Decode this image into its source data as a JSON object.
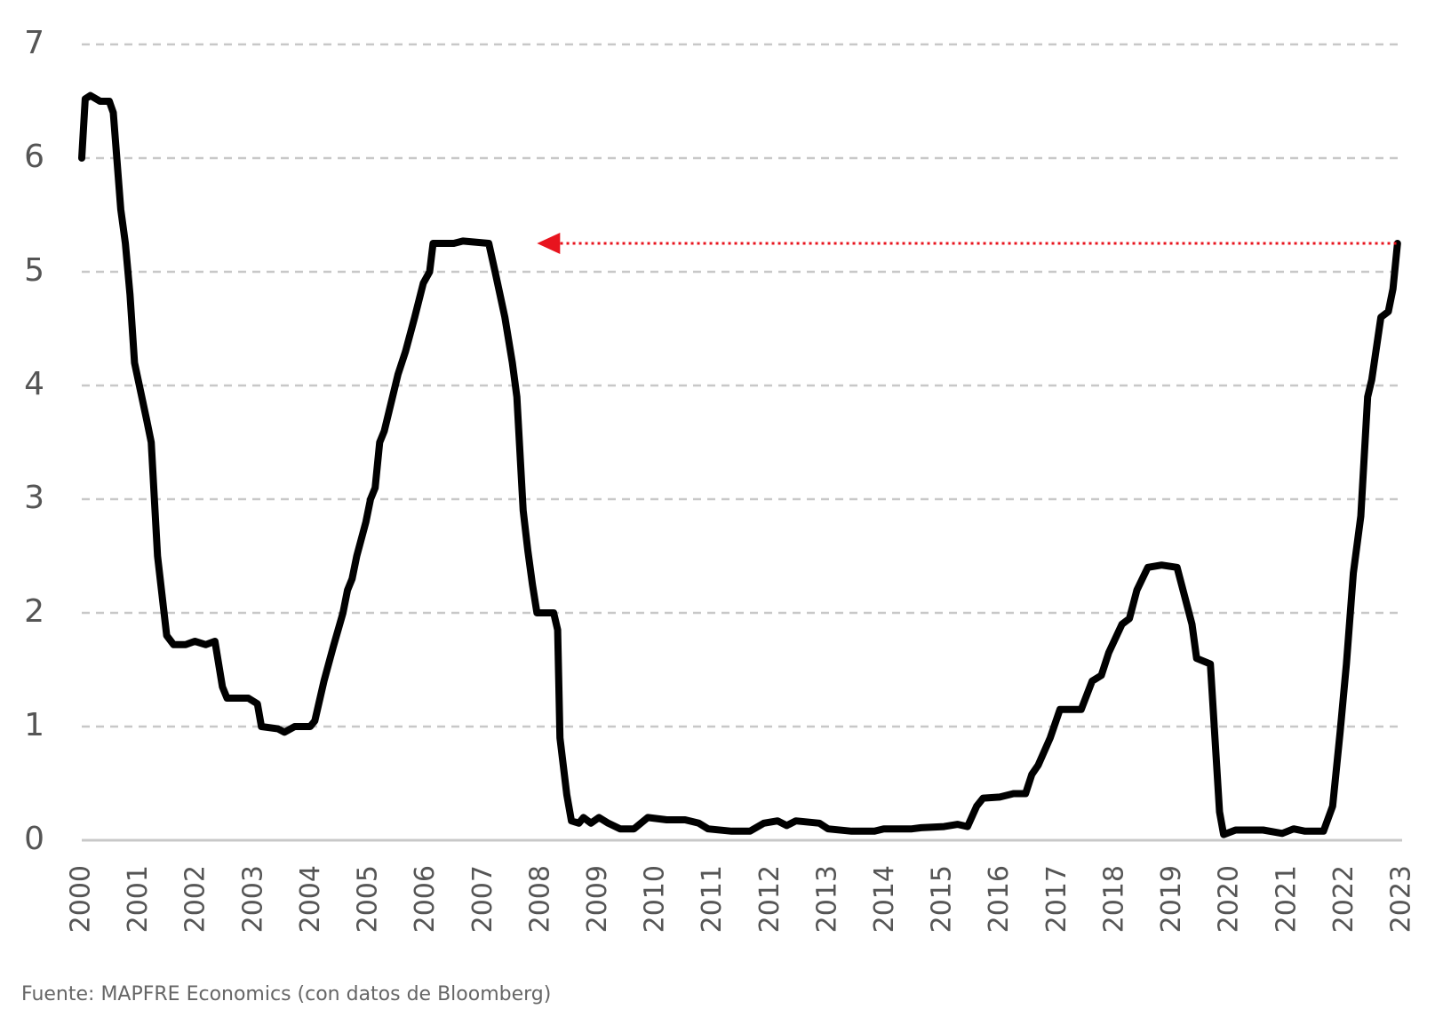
{
  "chart_data": {
    "type": "line",
    "color": "#000000",
    "x": [
      2000.0,
      2000.06,
      2000.15,
      2000.32,
      2000.48,
      2000.55,
      2000.68,
      2000.76,
      2000.84,
      2000.92,
      2001.13,
      2001.21,
      2001.32,
      2001.48,
      2001.6,
      2001.81,
      2001.97,
      2002.16,
      2002.32,
      2002.45,
      2002.53,
      2002.9,
      2003.06,
      2003.13,
      2003.42,
      2003.53,
      2003.71,
      2003.98,
      2004.06,
      2004.22,
      2004.38,
      2004.55,
      2004.63,
      2004.71,
      2004.79,
      2004.95,
      2005.03,
      2005.11,
      2005.19,
      2005.27,
      2005.51,
      2005.64,
      2005.8,
      2005.95,
      2006.06,
      2006.12,
      2006.48,
      2006.64,
      2007.09,
      2007.2,
      2007.37,
      2007.5,
      2007.58,
      2007.69,
      2007.77,
      2007.85,
      2007.93,
      2008.09,
      2008.22,
      2008.29,
      2008.33,
      2008.45,
      2008.53,
      2008.66,
      2008.74,
      2008.87,
      2009.01,
      2009.17,
      2009.38,
      2009.62,
      2009.86,
      2010.19,
      2010.51,
      2010.75,
      2010.91,
      2011.32,
      2011.64,
      2011.88,
      2012.12,
      2012.28,
      2012.44,
      2012.85,
      2013.0,
      2013.41,
      2013.81,
      2013.97,
      2014.46,
      2014.62,
      2015.02,
      2015.26,
      2015.43,
      2015.59,
      2015.7,
      2015.99,
      2016.23,
      2016.44,
      2016.55,
      2016.66,
      2016.87,
      2017.04,
      2017.41,
      2017.6,
      2017.76,
      2017.89,
      2018.12,
      2018.25,
      2018.38,
      2018.57,
      2018.81,
      2019.08,
      2019.21,
      2019.34,
      2019.42,
      2019.66,
      2019.82,
      2019.89,
      2020.1,
      2020.58,
      2020.91,
      2021.11,
      2021.31,
      2021.63,
      2021.79,
      2021.92,
      2022.03,
      2022.15,
      2022.28,
      2022.4,
      2022.47,
      2022.63,
      2022.76,
      2022.84,
      2022.92
    ],
    "values": [
      6.0,
      6.52,
      6.55,
      6.5,
      6.5,
      6.4,
      5.55,
      5.25,
      4.8,
      4.2,
      3.7,
      3.5,
      2.5,
      1.8,
      1.72,
      1.72,
      1.75,
      1.72,
      1.75,
      1.35,
      1.25,
      1.25,
      1.2,
      1.0,
      0.98,
      0.95,
      1.0,
      1.0,
      1.05,
      1.4,
      1.7,
      2.0,
      2.2,
      2.3,
      2.5,
      2.8,
      3.0,
      3.1,
      3.5,
      3.6,
      4.1,
      4.3,
      4.6,
      4.9,
      5.0,
      5.25,
      5.25,
      5.27,
      5.25,
      5.0,
      4.6,
      4.2,
      3.9,
      2.9,
      2.55,
      2.25,
      2.0,
      2.0,
      2.0,
      1.85,
      0.9,
      0.4,
      0.17,
      0.15,
      0.2,
      0.15,
      0.2,
      0.15,
      0.1,
      0.1,
      0.2,
      0.18,
      0.18,
      0.15,
      0.1,
      0.08,
      0.08,
      0.15,
      0.17,
      0.13,
      0.17,
      0.15,
      0.1,
      0.08,
      0.08,
      0.1,
      0.1,
      0.11,
      0.12,
      0.14,
      0.12,
      0.3,
      0.37,
      0.38,
      0.41,
      0.41,
      0.58,
      0.66,
      0.9,
      1.15,
      1.15,
      1.4,
      1.45,
      1.65,
      1.9,
      1.95,
      2.2,
      2.4,
      2.42,
      2.4,
      2.15,
      1.9,
      1.6,
      1.55,
      0.25,
      0.05,
      0.09,
      0.09,
      0.06,
      0.1,
      0.08,
      0.08,
      0.3,
      0.95,
      1.55,
      2.35,
      2.85,
      3.9,
      4.05,
      4.6,
      4.65,
      4.85,
      5.25
    ],
    "xlim": [
      2000,
      2023
    ],
    "xticks": [
      2000,
      2001,
      2002,
      2003,
      2004,
      2005,
      2006,
      2007,
      2008,
      2009,
      2010,
      2011,
      2012,
      2013,
      2014,
      2015,
      2016,
      2017,
      2018,
      2019,
      2020,
      2021,
      2022,
      2023
    ],
    "ylim": [
      0,
      7
    ],
    "yticks": [
      0,
      1,
      2,
      3,
      4,
      5,
      6,
      7
    ],
    "grid": true,
    "arrow": {
      "y": 5.25,
      "from_x": 2022.9,
      "to_x": 2007.93,
      "color": "#e8141e"
    },
    "source": "Fuente: MAPFRE Economics (con datos de Bloomberg)"
  }
}
